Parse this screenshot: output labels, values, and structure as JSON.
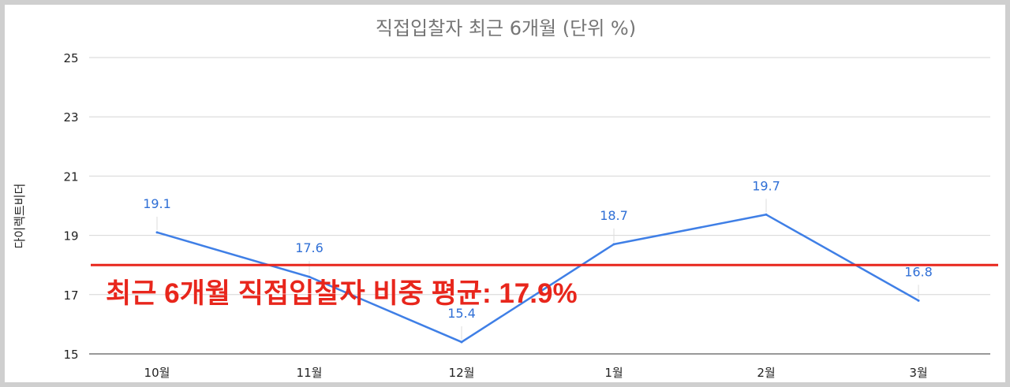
{
  "chart_data": {
    "type": "line",
    "title": "직접입찰자 최근 6개월 (단위 %)",
    "ylabel": "다이렉트비더",
    "xlabel": "",
    "categories": [
      "10월",
      "11월",
      "12월",
      "1월",
      "2월",
      "3월"
    ],
    "series": [
      {
        "values": [
          19.1,
          17.6,
          15.4,
          18.7,
          19.7,
          16.8
        ]
      }
    ],
    "data_labels": [
      "19.1",
      "17.6",
      "15.4",
      "18.7",
      "19.7",
      "16.8"
    ],
    "ylim": [
      15,
      25
    ],
    "yticks": [
      15,
      17,
      19,
      21,
      23,
      25
    ],
    "ytick_labels": [
      "15",
      "17",
      "19",
      "21",
      "23",
      "25"
    ],
    "grid": true,
    "reference_line": {
      "value": 18.0,
      "color": "#e8261c"
    },
    "annotation": "최근 6개월 직접입찰자 비중 평균: 17.9%",
    "colors": {
      "series": "#3f7fe6",
      "data_label": "#2f6fd6",
      "reference": "#e8261c",
      "annotation": "#e8261c",
      "grid": "#d6d6d6",
      "title": "#757575"
    }
  }
}
